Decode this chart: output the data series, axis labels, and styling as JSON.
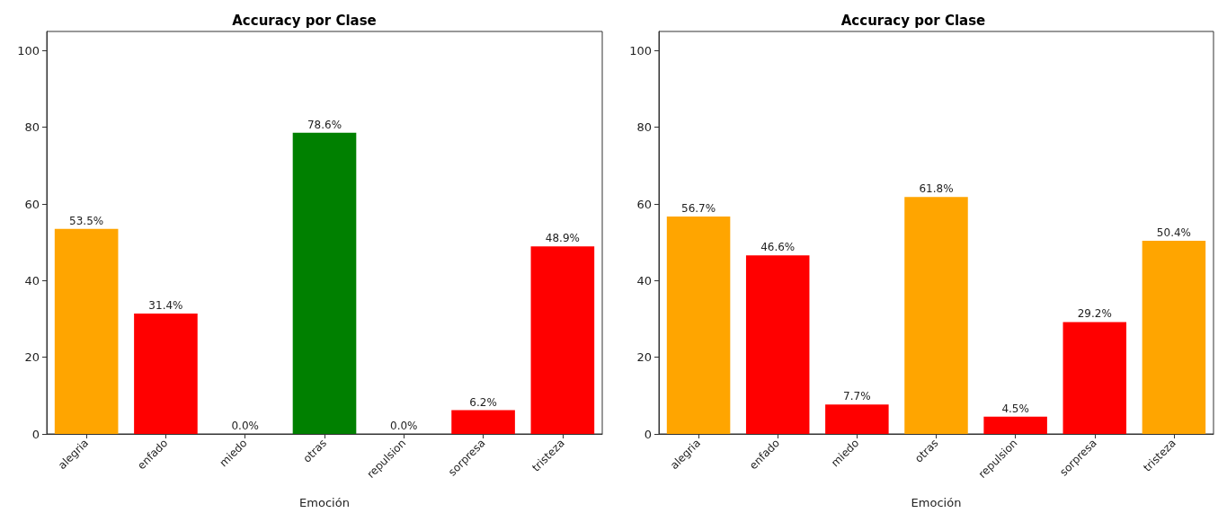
{
  "chart_data": [
    {
      "type": "bar",
      "title": "Accuracy por Clase",
      "xlabel": "Emoción",
      "categories": [
        "alegria",
        "enfado",
        "miedo",
        "otras",
        "repulsion",
        "sorpresa",
        "tristeza"
      ],
      "values": [
        53.5,
        31.4,
        0.0,
        78.6,
        0.0,
        6.2,
        48.9
      ],
      "colors": [
        "#ffa500",
        "#ff0000",
        "#ff0000",
        "#008000",
        "#ff0000",
        "#ff0000",
        "#ff0000"
      ],
      "value_labels": [
        "53.5%",
        "31.4%",
        "0.0%",
        "78.6%",
        "0.0%",
        "6.2%",
        "48.9%"
      ],
      "ylim": [
        0,
        105
      ],
      "yticks": [
        0,
        20,
        40,
        60,
        80,
        100
      ],
      "grid": false
    },
    {
      "type": "bar",
      "title": "Accuracy por Clase",
      "xlabel": "Emoción",
      "categories": [
        "alegria",
        "enfado",
        "miedo",
        "otras",
        "repulsion",
        "sorpresa",
        "tristeza"
      ],
      "values": [
        56.7,
        46.6,
        7.7,
        61.8,
        4.5,
        29.2,
        50.4
      ],
      "colors": [
        "#ffa500",
        "#ff0000",
        "#ff0000",
        "#ffa500",
        "#ff0000",
        "#ff0000",
        "#ffa500"
      ],
      "value_labels": [
        "56.7%",
        "46.6%",
        "7.7%",
        "61.8%",
        "4.5%",
        "29.2%",
        "50.4%"
      ],
      "ylim": [
        0,
        105
      ],
      "yticks": [
        0,
        20,
        40,
        60,
        80,
        100
      ],
      "grid": false
    }
  ]
}
